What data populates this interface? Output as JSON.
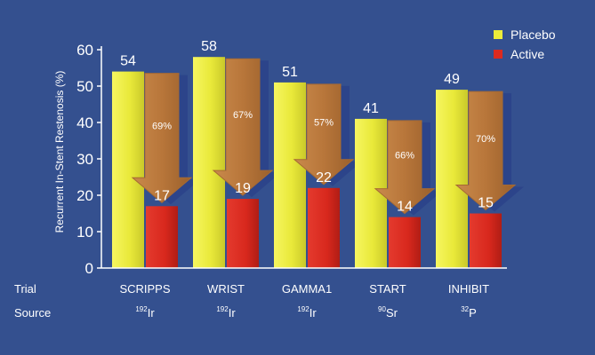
{
  "chart_data": {
    "type": "bar",
    "categories": [
      "SCRIPPS",
      "WRIST",
      "GAMMA1",
      "START",
      "INHIBIT"
    ],
    "sources": [
      {
        "mass": "192",
        "element": "Ir"
      },
      {
        "mass": "192",
        "element": "Ir"
      },
      {
        "mass": "192",
        "element": "Ir"
      },
      {
        "mass": "90",
        "element": "Sr"
      },
      {
        "mass": "32",
        "element": "P"
      }
    ],
    "series": [
      {
        "name": "Placebo",
        "values": [
          54,
          58,
          51,
          41,
          49
        ],
        "color": "#ecec3a"
      },
      {
        "name": "Active",
        "values": [
          17,
          19,
          22,
          14,
          15
        ],
        "color": "#dc2a1f"
      }
    ],
    "reductions": [
      "69%",
      "67%",
      "57%",
      "66%",
      "70%"
    ],
    "ylabel": "Recurrent In-Stent Restenosis (%)",
    "ylim": [
      0,
      60
    ],
    "yticks": [
      0,
      10,
      20,
      30,
      40,
      50,
      60
    ],
    "grid": false,
    "legend_position": "top-right",
    "row_labels": {
      "trial": "Trial",
      "source": "Source"
    },
    "colors": {
      "background": "#34508f",
      "arrow": "#b8763a",
      "arrow_shadow": "#2b438a"
    }
  }
}
